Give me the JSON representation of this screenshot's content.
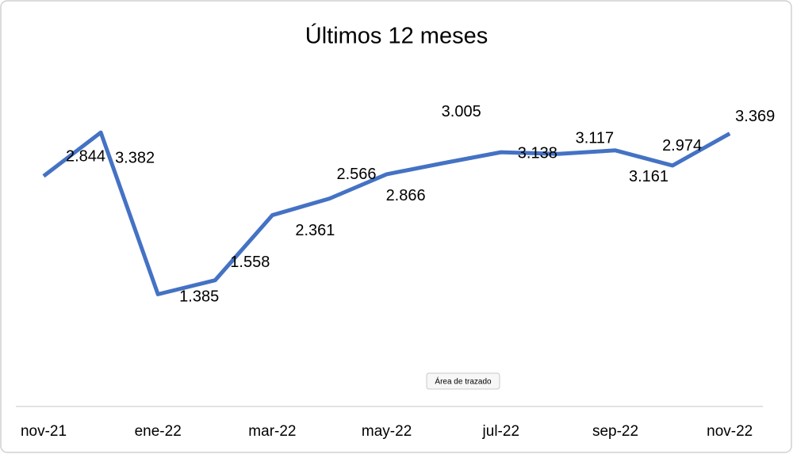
{
  "chart_data": {
    "type": "line",
    "title": "Últimos 12 meses",
    "categories": [
      "nov-21",
      null,
      "ene-22",
      null,
      "mar-22",
      null,
      "may-22",
      null,
      "jul-22",
      null,
      "sep-22",
      null,
      "nov-22"
    ],
    "values": [
      2.844,
      3.382,
      1.385,
      1.558,
      2.361,
      2.566,
      2.866,
      3.005,
      3.138,
      3.117,
      3.161,
      2.974,
      3.369
    ],
    "color": "#4472c4",
    "ylim": [
      0,
      4
    ],
    "tooltip": "Área de trazado"
  }
}
